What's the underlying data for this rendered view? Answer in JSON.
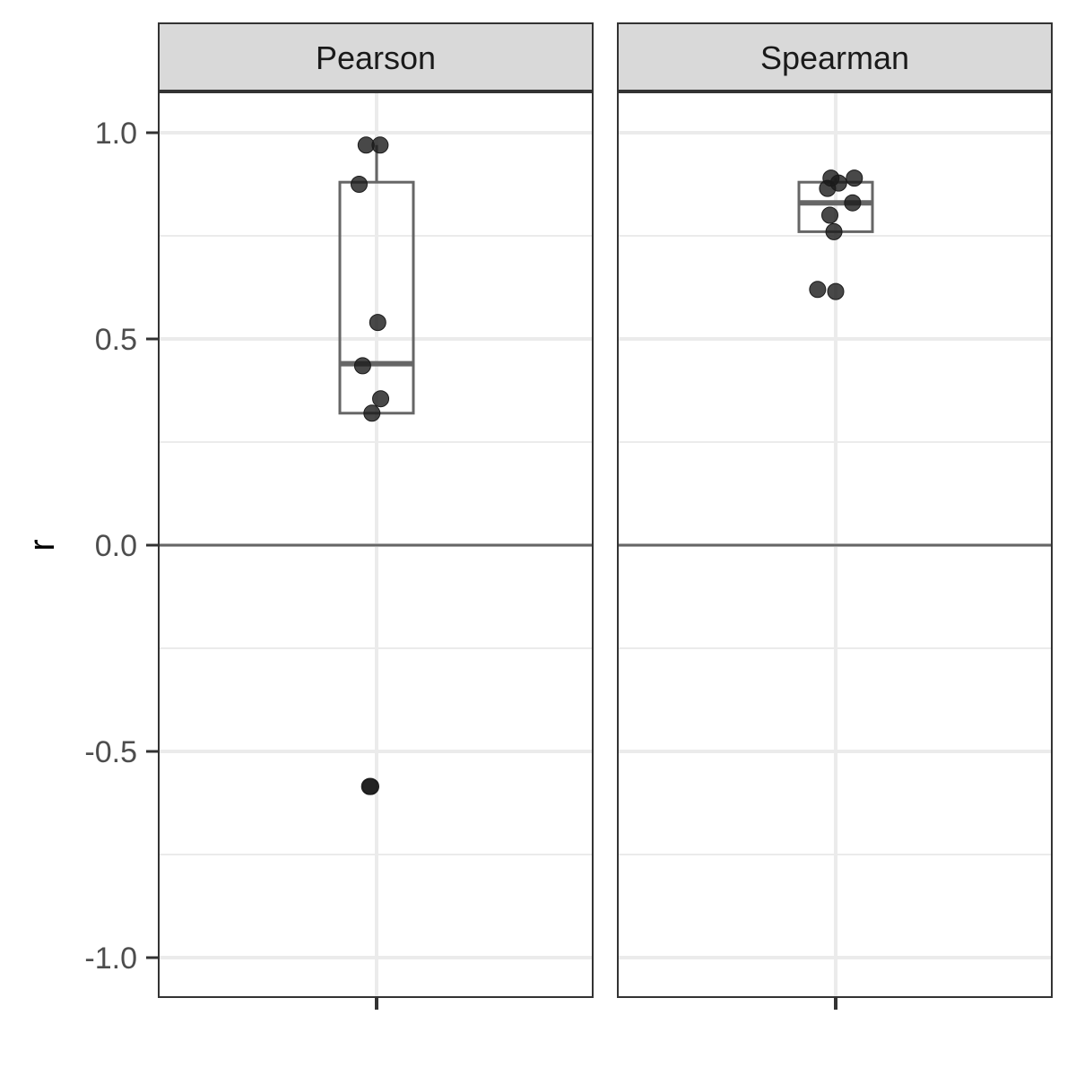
{
  "chart_data": {
    "type": "box",
    "ylabel": "r",
    "ylim": [
      -1.1,
      1.1
    ],
    "yticks": [
      1.0,
      0.5,
      0.0,
      -0.5,
      -1.0
    ],
    "ytick_labels": [
      "1.0",
      "0.5",
      "0.0",
      "-0.5",
      "-1.0"
    ],
    "y_minor": [
      0.75,
      0.25,
      -0.25,
      -0.75
    ],
    "reference_line": 0,
    "grid": true,
    "colors": {
      "strip_fill": "#d9d9d9",
      "panel_border": "#333333",
      "grid": "#ebebeb",
      "box": "#666666",
      "point": "#1a1a1a",
      "reference_line": "#666666"
    },
    "panels": [
      {
        "name": "Pearson",
        "box": {
          "lower": 0.32,
          "q1": 0.32,
          "median": 0.44,
          "q3": 0.88,
          "upper": 0.97
        },
        "points": [
          {
            "x_jitter": -0.09,
            "y": 0.97
          },
          {
            "x_jitter": 0.03,
            "y": 0.97
          },
          {
            "x_jitter": -0.15,
            "y": 0.875
          },
          {
            "x_jitter": 0.01,
            "y": 0.54
          },
          {
            "x_jitter": -0.12,
            "y": 0.435
          },
          {
            "x_jitter": 0.035,
            "y": 0.355
          },
          {
            "x_jitter": -0.04,
            "y": 0.32
          },
          {
            "x_jitter": -0.06,
            "y": -0.585
          },
          {
            "x_jitter": -0.05,
            "y": -0.585
          }
        ]
      },
      {
        "name": "Spearman",
        "box": {
          "lower": 0.76,
          "q1": 0.76,
          "median": 0.83,
          "q3": 0.88,
          "upper": 0.89
        },
        "points": [
          {
            "x_jitter": -0.04,
            "y": 0.89
          },
          {
            "x_jitter": 0.16,
            "y": 0.89
          },
          {
            "x_jitter": 0.025,
            "y": 0.878
          },
          {
            "x_jitter": -0.07,
            "y": 0.865
          },
          {
            "x_jitter": 0.145,
            "y": 0.83
          },
          {
            "x_jitter": -0.05,
            "y": 0.8
          },
          {
            "x_jitter": -0.015,
            "y": 0.76
          },
          {
            "x_jitter": -0.155,
            "y": 0.62
          },
          {
            "x_jitter": 0.0,
            "y": 0.615
          }
        ]
      }
    ]
  }
}
